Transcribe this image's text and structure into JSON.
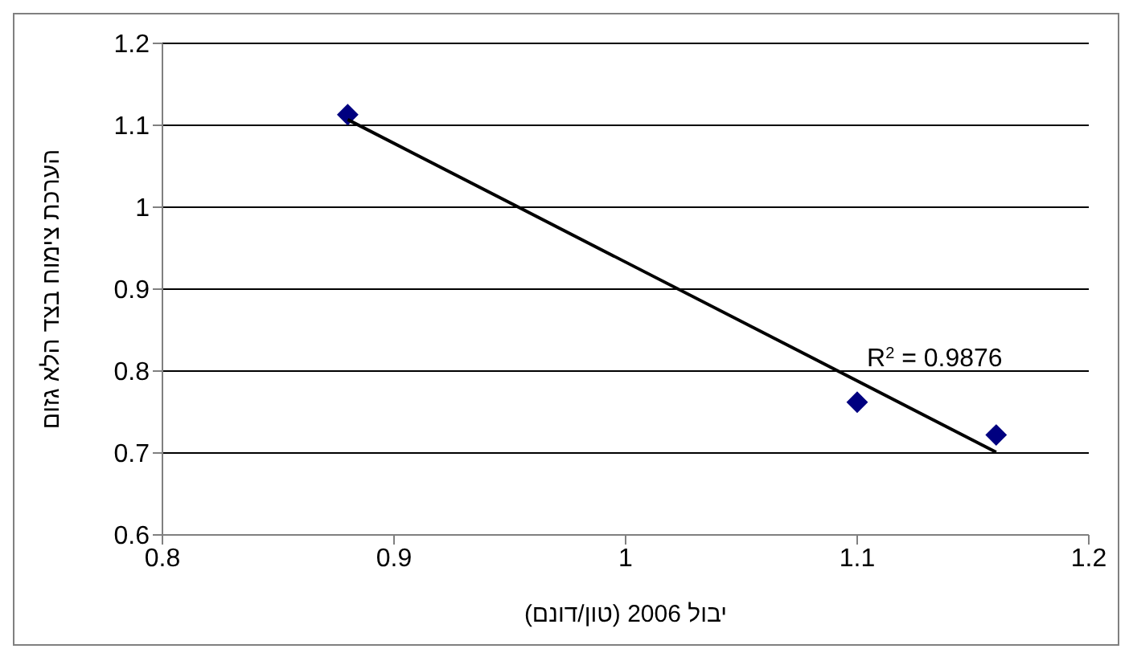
{
  "chart_data": {
    "type": "scatter",
    "xlabel": "יבול 2006 (טון/דונם)",
    "ylabel": "הערכת צימוח בצד הלא גזום",
    "xlim": [
      0.8,
      1.2
    ],
    "xticks": [
      0.8,
      0.9,
      1,
      1.1,
      1.2
    ],
    "ylim": [
      0.6,
      1.2
    ],
    "yticks": [
      0.6,
      0.7,
      0.8,
      0.9,
      1,
      1.1,
      1.2
    ],
    "grid": "y",
    "marker": "diamond",
    "series": [
      {
        "color": "#000080",
        "x": [
          0.88,
          1.1,
          1.16
        ],
        "values": [
          1.113,
          0.762,
          0.722
        ]
      },
      {
        "type": "line",
        "color": "#000000",
        "x": [
          0.88,
          1.16
        ],
        "values": [
          1.107,
          0.701
        ],
        "marker": "none"
      }
    ],
    "annotations": [
      "R$^{2}$ = 0.9876"
    ]
  }
}
